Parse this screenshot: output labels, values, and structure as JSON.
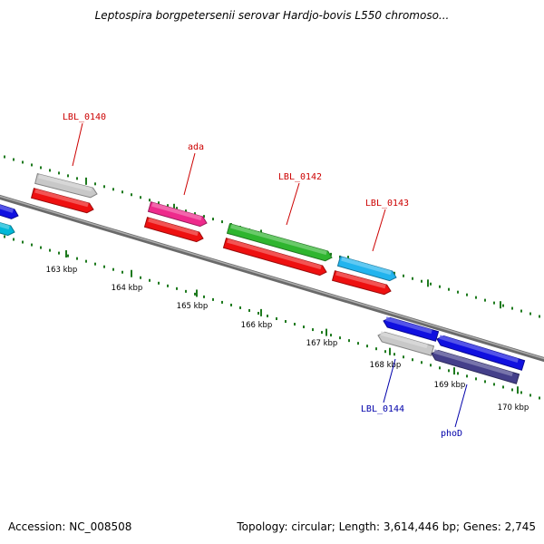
{
  "title": "Leptospira borgpetersenii serovar Hardjo-bovis L550 chromoso...",
  "accession_label": "Accession: NC_008508",
  "topology_label": "Topology: circular; Length: 3,614,446 bp; Genes: 2,745",
  "colors": {
    "backbone": "#8a8a8a",
    "tick": "#1e7a1e",
    "kbp_text": "#000000",
    "label_forward": "#cc0000",
    "label_reverse": "#0000aa"
  },
  "kbp_ticks": [
    "163 kbp",
    "164 kbp",
    "165 kbp",
    "166 kbp",
    "167 kbp",
    "168 kbp",
    "169 kbp",
    "170 kbp"
  ],
  "genes": [
    {
      "id": "left-blue",
      "color": "#1010e0",
      "strand": "forward"
    },
    {
      "id": "left-cyan",
      "color": "#00b8d8",
      "strand": "forward"
    },
    {
      "id": "LBL_0140",
      "color": "#c8c8c8",
      "strand": "forward",
      "label": "LBL_0140"
    },
    {
      "id": "LBL_0140-cds",
      "color": "#ee1010",
      "strand": "forward"
    },
    {
      "id": "ada",
      "color": "#ee2a8c",
      "strand": "forward",
      "label": "ada"
    },
    {
      "id": "ada-cds",
      "color": "#ee1010",
      "strand": "forward"
    },
    {
      "id": "LBL_0142",
      "color": "#2fb52f",
      "strand": "forward",
      "label": "LBL_0142"
    },
    {
      "id": "LBL_0142-cds",
      "color": "#ee1010",
      "strand": "forward"
    },
    {
      "id": "LBL_0143",
      "color": "#22b4ee",
      "strand": "forward",
      "label": "LBL_0143"
    },
    {
      "id": "LBL_0143-cds",
      "color": "#ee1010",
      "strand": "forward"
    },
    {
      "id": "right-blue-a",
      "color": "#1010e0",
      "strand": "reverse"
    },
    {
      "id": "LBL_0144",
      "color": "#c8c8c8",
      "strand": "reverse",
      "label": "LBL_0144"
    },
    {
      "id": "right-blue-b",
      "color": "#1010e0",
      "strand": "reverse"
    },
    {
      "id": "phoD",
      "color": "#443f8a",
      "strand": "reverse",
      "label": "phoD"
    }
  ]
}
